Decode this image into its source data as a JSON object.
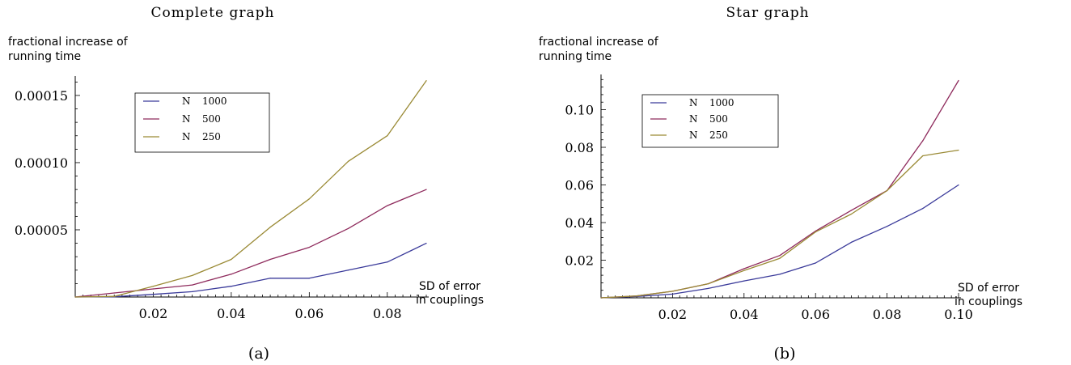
{
  "chart_data": [
    {
      "type": "line",
      "title": "Complete graph",
      "ylabel": "fractional increase of running time",
      "ylabel_lines": [
        "fractional increase of",
        "running time"
      ],
      "xlabel": "SD of error in couplings",
      "xlabel_lines": [
        "SD of error",
        "in couplings"
      ],
      "panel_label": "(a)",
      "xlim": [
        0,
        0.09
      ],
      "ylim": [
        0,
        0.000162
      ],
      "x_ticks": [
        0.02,
        0.04,
        0.06,
        0.08
      ],
      "x_tick_labels": [
        "0.02",
        "0.04",
        "0.06",
        "0.08"
      ],
      "y_ticks": [
        5e-05,
        0.0001,
        0.00015
      ],
      "y_tick_labels": [
        "0.00005",
        "0.00010",
        "0.00015"
      ],
      "grid": false,
      "legend_position": "top-left",
      "x": [
        0,
        0.01,
        0.02,
        0.03,
        0.04,
        0.05,
        0.06,
        0.07,
        0.08,
        0.09
      ],
      "series": [
        {
          "name": "N 1000",
          "name_parts": [
            "N",
            "1000"
          ],
          "color": "#3a3a9a",
          "values": [
            0,
            2e-07,
            2e-06,
            4e-06,
            8e-06,
            1.4e-05,
            1.4e-05,
            2e-05,
            2.6e-05,
            4e-05
          ]
        },
        {
          "name": "N 500",
          "name_parts": [
            "N",
            "500"
          ],
          "color": "#8e2a5c",
          "values": [
            0,
            3e-06,
            6e-06,
            9e-06,
            1.7e-05,
            2.8e-05,
            3.7e-05,
            5.1e-05,
            6.8e-05,
            8e-05
          ]
        },
        {
          "name": "N 250",
          "name_parts": [
            "N",
            "250"
          ],
          "color": "#9a8a35",
          "values": [
            0,
            5e-07,
            8e-06,
            1.6e-05,
            2.8e-05,
            5.2e-05,
            7.3e-05,
            0.000101,
            0.00012,
            0.000161
          ]
        }
      ]
    },
    {
      "type": "line",
      "title": "Star graph",
      "ylabel": "fractional increase of running time",
      "ylabel_lines": [
        "fractional increase of",
        "running time"
      ],
      "xlabel": "SD of error in couplings",
      "xlabel_lines": [
        "SD of error",
        "in couplings"
      ],
      "panel_label": "(b)",
      "xlim": [
        0,
        0.1
      ],
      "ylim": [
        0,
        0.117
      ],
      "x_ticks": [
        0.02,
        0.04,
        0.06,
        0.08,
        0.1
      ],
      "x_tick_labels": [
        "0.02",
        "0.04",
        "0.06",
        "0.08",
        "0.10"
      ],
      "y_ticks": [
        0.02,
        0.04,
        0.06,
        0.08,
        0.1
      ],
      "y_tick_labels": [
        "0.02",
        "0.04",
        "0.06",
        "0.08",
        "0.10"
      ],
      "grid": false,
      "legend_position": "top-left",
      "x": [
        0,
        0.01,
        0.02,
        0.03,
        0.04,
        0.05,
        0.06,
        0.07,
        0.08,
        0.09,
        0.1
      ],
      "series": [
        {
          "name": "N 1000",
          "name_parts": [
            "N",
            "1000"
          ],
          "color": "#3a3a9a",
          "values": [
            0,
            0.0007,
            0.002,
            0.005,
            0.009,
            0.0125,
            0.0185,
            0.0295,
            0.038,
            0.0475,
            0.06
          ]
        },
        {
          "name": "N 500",
          "name_parts": [
            "N",
            "500"
          ],
          "color": "#8e2a5c",
          "values": [
            0,
            0.001,
            0.0035,
            0.0075,
            0.0155,
            0.0225,
            0.0355,
            0.0465,
            0.057,
            0.0835,
            0.1155
          ]
        },
        {
          "name": "N 250",
          "name_parts": [
            "N",
            "250"
          ],
          "color": "#9a8a35",
          "values": [
            0,
            0.001,
            0.0035,
            0.0075,
            0.0145,
            0.021,
            0.035,
            0.0445,
            0.057,
            0.0755,
            0.0785
          ]
        }
      ]
    }
  ]
}
